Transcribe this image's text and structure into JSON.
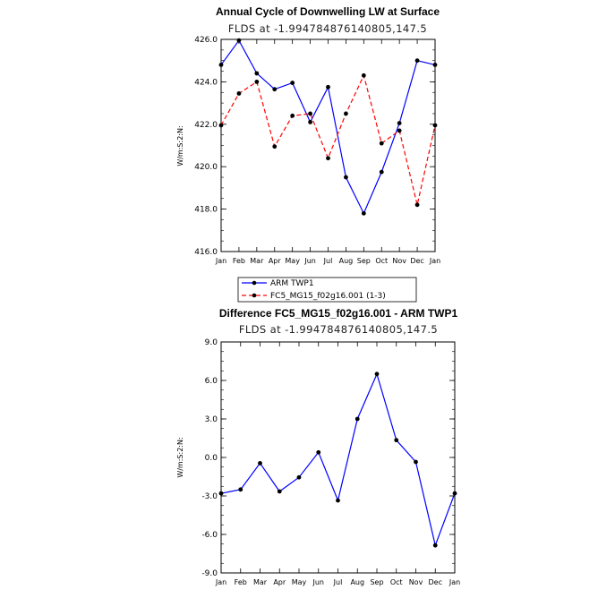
{
  "chart_data": [
    {
      "type": "line",
      "title": "Annual Cycle of Downwelling LW at Surface",
      "subtitle": "FLDS at -1.994784876140805,147.5",
      "ylabel": "W/m:S:2:N:",
      "xlabel": "",
      "categories": [
        "Jan",
        "Feb",
        "Mar",
        "Apr",
        "May",
        "Jun",
        "Jul",
        "Aug",
        "Sep",
        "Oct",
        "Nov",
        "Dec",
        "Jan"
      ],
      "ylim": [
        416.0,
        426.0
      ],
      "yticks": [
        "416.0",
        "418.0",
        "420.0",
        "422.0",
        "424.0",
        "426.0"
      ],
      "ytick_values": [
        416,
        418,
        420,
        422,
        424,
        426
      ],
      "grid": false,
      "legend": "bottom",
      "series": [
        {
          "name": "ARM TWP1",
          "color": "#0000ff",
          "dash": "solid",
          "values": [
            424.8,
            425.95,
            424.4,
            423.65,
            423.95,
            422.1,
            423.75,
            419.5,
            417.8,
            419.75,
            422.05,
            425.0,
            424.8
          ]
        },
        {
          "name": "FC5_MG15_f02g16.001 (1-3)",
          "color": "#ff0000",
          "dash": "dashed",
          "values": [
            421.95,
            423.45,
            424.0,
            420.95,
            422.4,
            422.5,
            420.4,
            422.5,
            424.3,
            421.1,
            421.7,
            418.2,
            421.95
          ]
        }
      ]
    },
    {
      "type": "line",
      "title": "Difference FC5_MG15_f02g16.001 - ARM TWP1",
      "subtitle": "FLDS at -1.994784876140805,147.5",
      "ylabel": "W/m:S:2:N:",
      "xlabel": "",
      "categories": [
        "Jan",
        "Feb",
        "Mar",
        "Apr",
        "May",
        "Jun",
        "Jul",
        "Aug",
        "Sep",
        "Oct",
        "Nov",
        "Dec",
        "Jan"
      ],
      "ylim": [
        -9.0,
        9.0
      ],
      "yticks": [
        "-9.0",
        "-6.0",
        "-3.0",
        "0.0",
        "3.0",
        "6.0",
        "9.0"
      ],
      "ytick_values": [
        -9,
        -6,
        -3,
        0,
        3,
        6,
        9
      ],
      "grid": false,
      "series": [
        {
          "color": "#0000ff",
          "dash": "solid",
          "values": [
            -2.8,
            -2.5,
            -0.45,
            -2.65,
            -1.55,
            0.4,
            -3.35,
            3.0,
            6.5,
            1.35,
            -0.35,
            -6.85,
            -2.8
          ]
        }
      ]
    }
  ]
}
